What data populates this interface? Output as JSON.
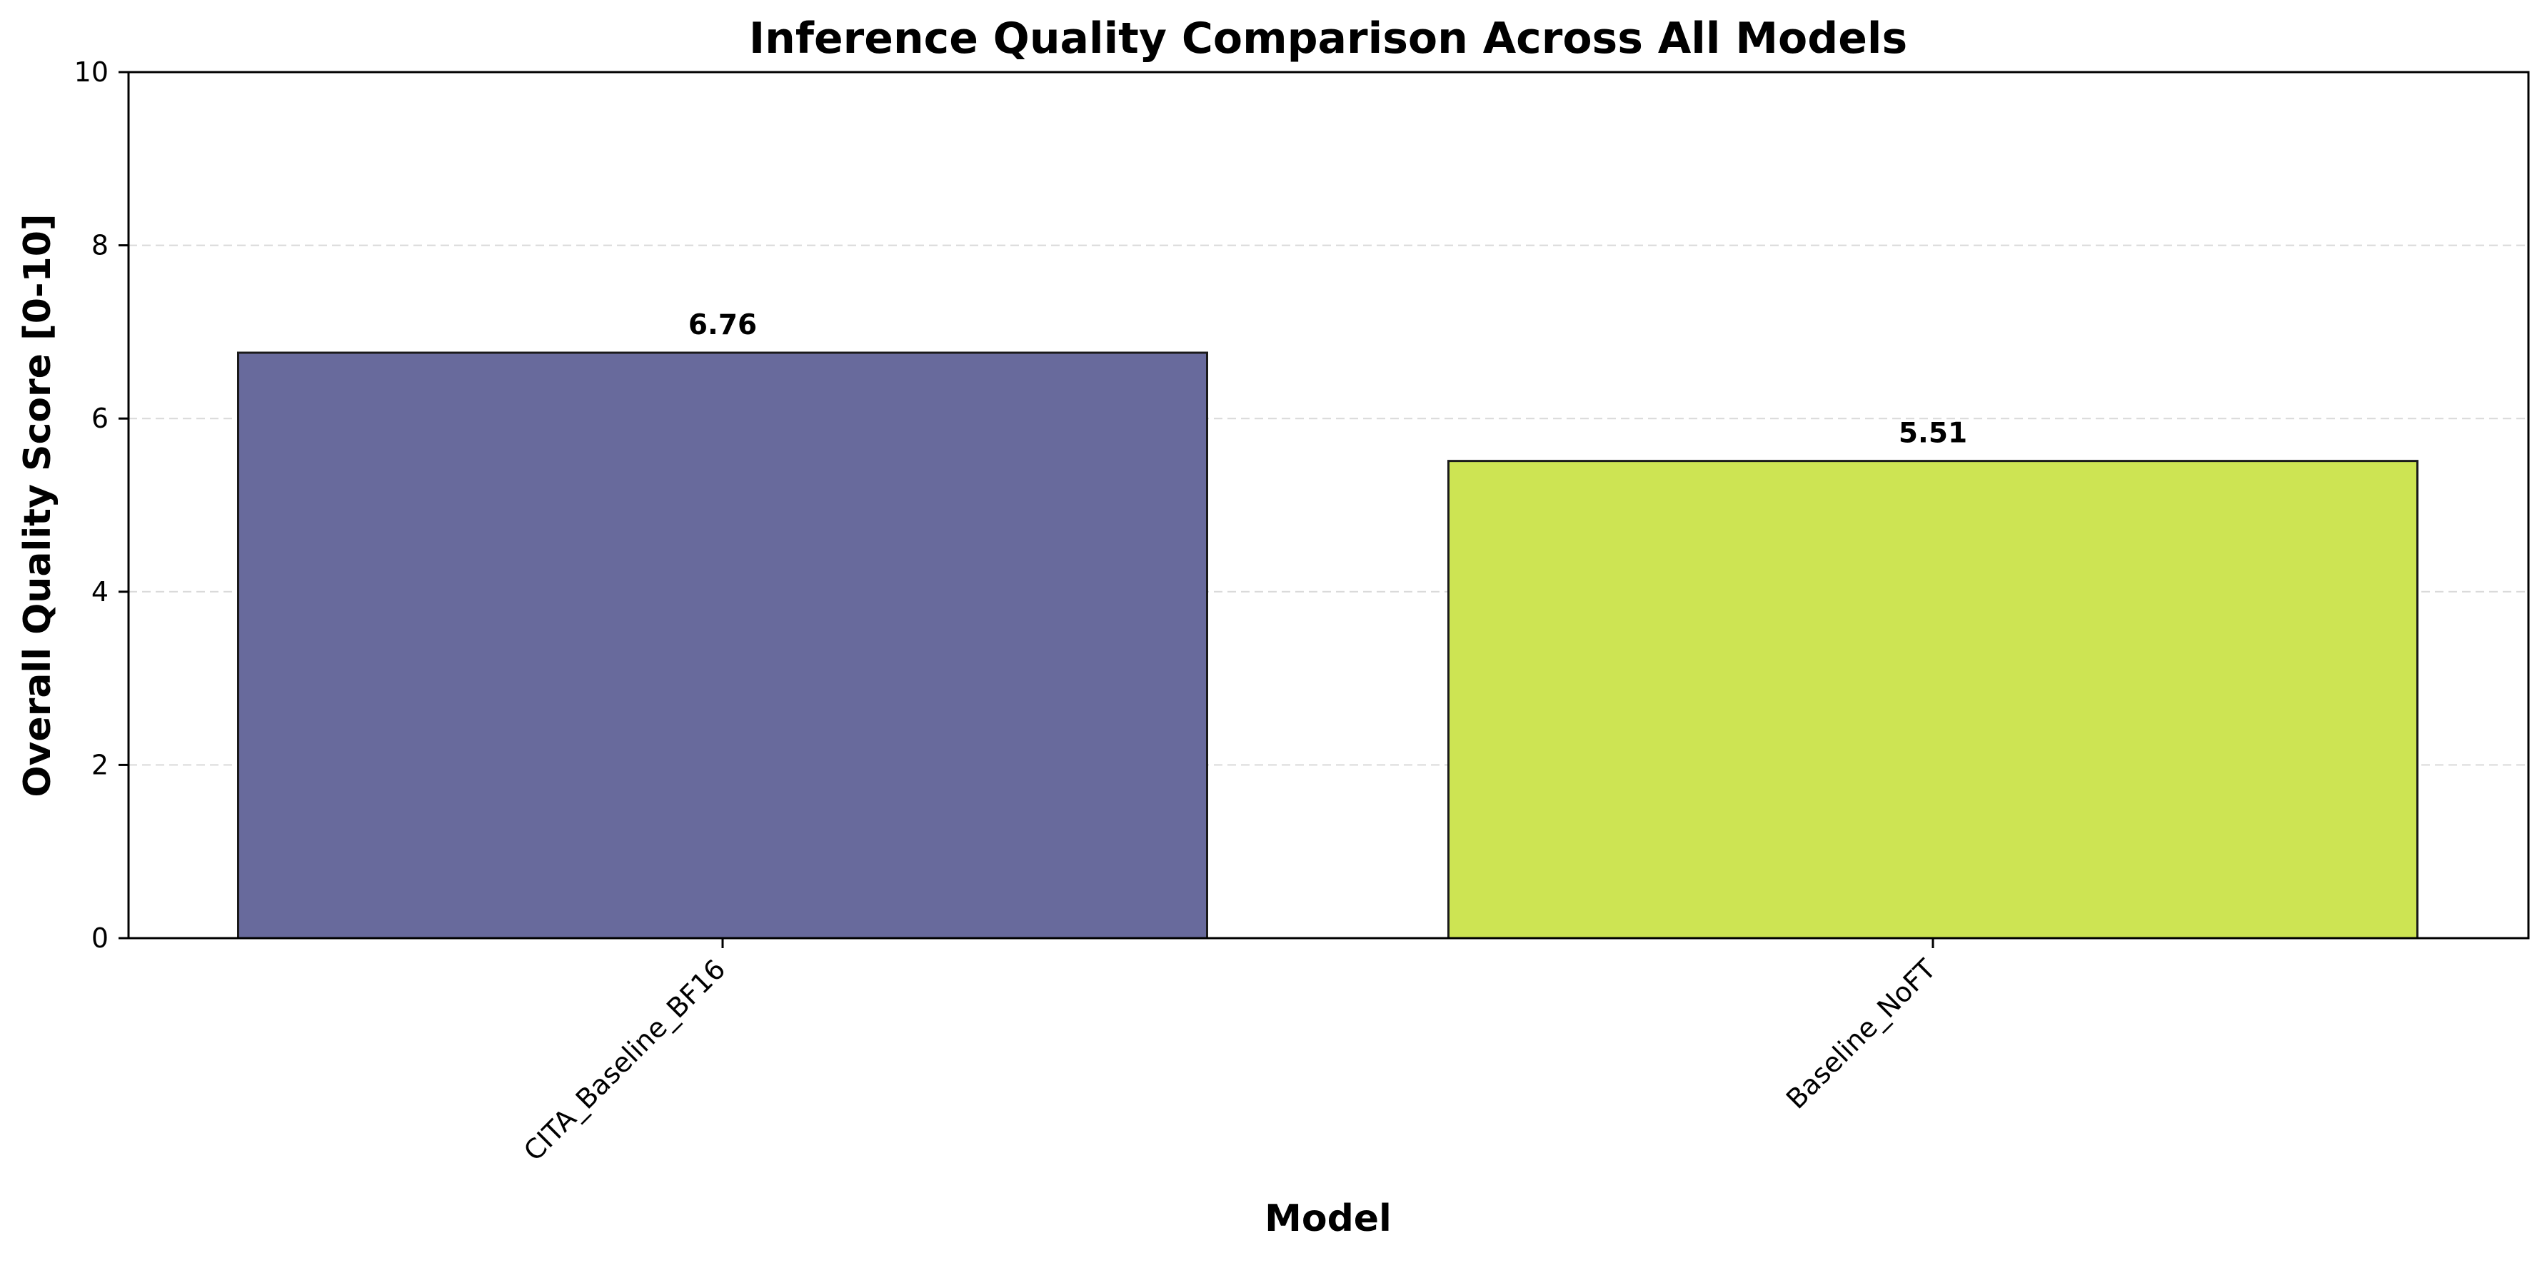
{
  "chart_data": {
    "type": "bar",
    "title": "Inference Quality Comparison Across All Models",
    "xlabel": "Model",
    "ylabel": "Overall Quality Score [0-10]",
    "categories": [
      "CITA_Baseline_BF16",
      "Baseline_NoFT"
    ],
    "values": [
      6.76,
      5.51
    ],
    "value_labels": [
      "6.76",
      "5.51"
    ],
    "bar_colors": [
      "#686a9c",
      "#cde453"
    ],
    "ylim": [
      0,
      10
    ],
    "yticks": [
      0,
      2,
      4,
      6,
      8,
      10
    ],
    "ytick_labels": [
      "0",
      "2",
      "4",
      "6",
      "8",
      "10"
    ],
    "grid": "y dashed",
    "xtick_rotation": "45 degrees"
  }
}
